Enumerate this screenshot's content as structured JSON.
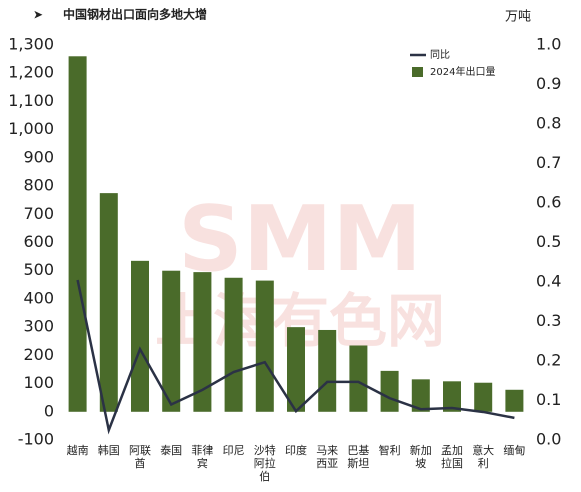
{
  "chart_data": {
    "type": "bar-line",
    "title": "中国钢材出口面向多地大增",
    "y_label": "万吨",
    "watermark": [
      "SMM",
      "上海有色网"
    ],
    "categories": [
      "越南",
      "韩国",
      "阿联酋",
      "泰国",
      "菲律宾",
      "印尼",
      "沙特阿拉伯",
      "印度",
      "马来西亚",
      "巴基斯坦",
      "智利",
      "新加坡",
      "孟加拉国",
      "意大利",
      "缅甸"
    ],
    "series": [
      {
        "name": "2024年出口量",
        "color": "#4a6b2a",
        "type": "bar",
        "values": [
          1260,
          775,
          535,
          500,
          495,
          475,
          465,
          300,
          290,
          235,
          145,
          115,
          108,
          103,
          78
        ]
      },
      {
        "name": "同比",
        "color": "#2b3245",
        "type": "line",
        "axis": "y2",
        "values": [
          0.405,
          0.025,
          0.23,
          0.09,
          0.127,
          0.172,
          0.197,
          0.073,
          0.147,
          0.147,
          0.106,
          0.078,
          0.081,
          0.071,
          0.056
        ]
      }
    ],
    "ylim": [
      -100,
      1300
    ],
    "yticks": [
      -100,
      0,
      100,
      200,
      300,
      400,
      500,
      600,
      700,
      800,
      900,
      {
        "value": 1000,
        "label": "1,000"
      },
      {
        "value": 1100,
        "label": "1,100"
      },
      {
        "value": 1200,
        "label": "1,200"
      },
      {
        "value": 1300,
        "label": "1,300"
      }
    ],
    "y2lim": [
      0,
      1
    ],
    "y2ticks": [
      {
        "value": 0,
        "label": "0.0"
      },
      0.1,
      0.2,
      0.3,
      0.4,
      0.5,
      0.6,
      0.7,
      0.8,
      0.9,
      {
        "value": 1,
        "label": "1.0"
      }
    ],
    "legend": "top-right"
  }
}
